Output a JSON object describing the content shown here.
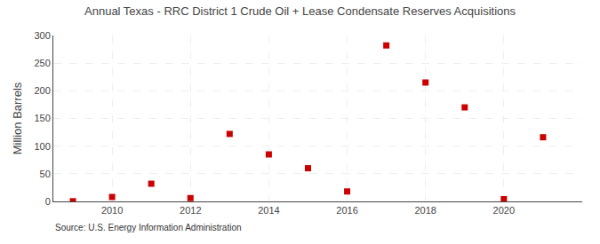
{
  "chart_data": {
    "type": "scatter",
    "title": "Annual Texas - RRC District 1 Crude Oil + Lease Condensate Reserves Acquisitions",
    "ylabel": "Million Barrels",
    "annotation": "Source: U.S. Energy Information Administration",
    "x": [
      2009,
      2010,
      2011,
      2012,
      2013,
      2014,
      2015,
      2016,
      2017,
      2018,
      2019,
      2020,
      2021
    ],
    "values": [
      0.3,
      8,
      32,
      6,
      122,
      85,
      60,
      18,
      282,
      215,
      170,
      4,
      116
    ],
    "color": "#cc0000",
    "marker": "square",
    "xlim": [
      2008.5,
      2022.0
    ],
    "ylim": [
      0,
      300
    ],
    "xticks": [
      2010,
      2012,
      2014,
      2016,
      2018,
      2020
    ],
    "yticks": [
      0,
      50,
      100,
      150,
      200,
      250,
      300
    ],
    "grid": true
  }
}
